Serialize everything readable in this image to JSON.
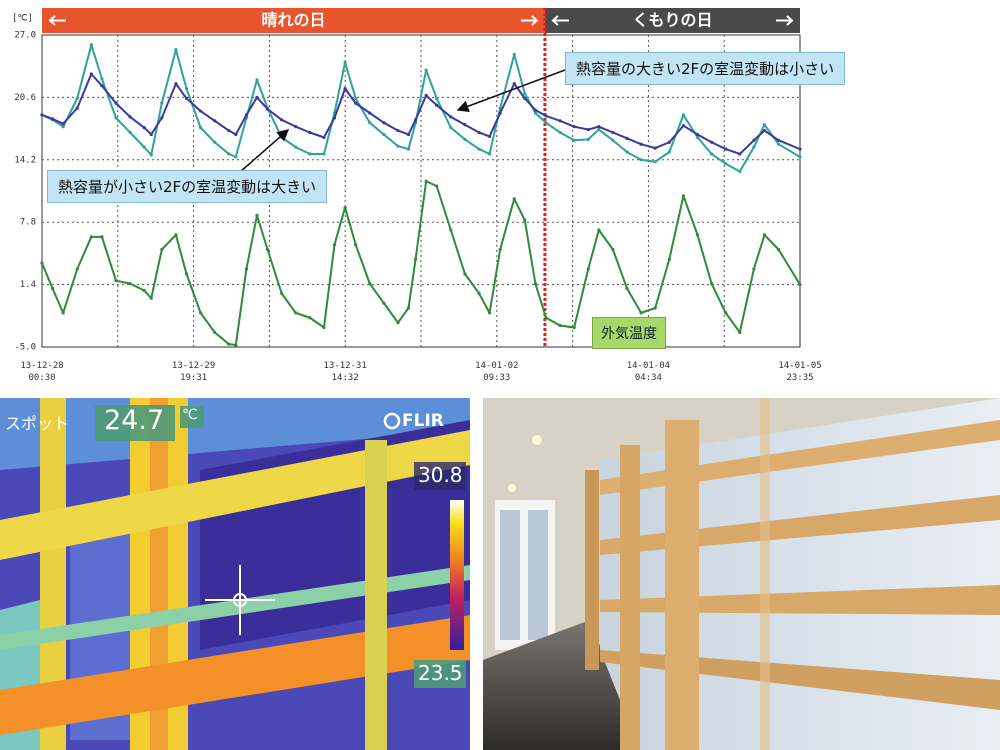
{
  "chart_data": {
    "type": "line",
    "y_unit": "[℃]",
    "regions": [
      {
        "label": "晴れの日",
        "from": 0,
        "to": 142.7,
        "color": "#e8542b"
      },
      {
        "label": "くもりの日",
        "from": 142.7,
        "to": 215.08,
        "color": "#4a4a4a"
      }
    ],
    "annotations": [
      "熱容量の大きい2Fの室温変動は小さい",
      "熱容量が小さい2Fの室温変動は大きい"
    ],
    "x": [
      0,
      3,
      6,
      10,
      14,
      17,
      21,
      25,
      29,
      31,
      34,
      38,
      41,
      45,
      49,
      53,
      55,
      58,
      61,
      64,
      68,
      72,
      76,
      80,
      83,
      86,
      89,
      93,
      97,
      101,
      104,
      106,
      109,
      112,
      116,
      120,
      124,
      127,
      130,
      134,
      137,
      140,
      143,
      147,
      151,
      155,
      158,
      162,
      166,
      170,
      174,
      178,
      182,
      186,
      190,
      194,
      198,
      202,
      205,
      209,
      215.08
    ],
    "xlim": [
      0,
      215.08
    ],
    "xticks": [
      {
        "value": 0,
        "label": "13-12-28\n00:30"
      },
      {
        "value": 43.02,
        "label": "13-12-29\n19:31"
      },
      {
        "value": 86.03,
        "label": "13-12-31\n14:32"
      },
      {
        "value": 129.05,
        "label": "14-01-02\n09:33"
      },
      {
        "value": 172.07,
        "label": "14-01-04\n04:34"
      },
      {
        "value": 215.08,
        "label": "14-01-05\n23:35"
      }
    ],
    "ylim": [
      -5,
      27
    ],
    "yticks": [
      {
        "value": 27,
        "label": "27.0"
      },
      20.6,
      14.2,
      7.8,
      1.4,
      {
        "value": -5,
        "label": "-5.0"
      }
    ],
    "grid": true,
    "series": [
      {
        "color": "#2fa398",
        "values": [
          18.8,
          18.3,
          17.6,
          20.5,
          26.0,
          22.5,
          18.5,
          17.0,
          15.5,
          14.7,
          20.0,
          25.5,
          21.5,
          17.5,
          16.0,
          14.8,
          14.5,
          18.5,
          22.4,
          19.5,
          16.5,
          15.5,
          14.8,
          14.8,
          19.0,
          24.2,
          20.5,
          18.0,
          16.8,
          15.6,
          15.3,
          18.0,
          23.4,
          20.5,
          17.5,
          16.3,
          15.3,
          14.8,
          19.5,
          25.0,
          21.0,
          19.0,
          18.0,
          17.0,
          16.2,
          16.3,
          17.3,
          16.2,
          15.0,
          14.2,
          14.0,
          15.0,
          18.8,
          16.5,
          14.8,
          13.8,
          13.0,
          15.5,
          17.8,
          15.8,
          14.5
        ]
      },
      {
        "color": "#3b3a9c",
        "values": [
          18.8,
          18.4,
          17.9,
          19.5,
          23.0,
          21.8,
          20.0,
          18.6,
          17.5,
          16.8,
          18.5,
          22.0,
          20.5,
          19.2,
          18.2,
          17.2,
          16.8,
          18.8,
          20.6,
          19.4,
          18.3,
          17.6,
          17.0,
          16.5,
          18.5,
          21.5,
          20.0,
          19.0,
          18.0,
          17.2,
          16.8,
          18.3,
          20.8,
          19.8,
          18.6,
          17.8,
          17.0,
          16.6,
          19.0,
          22.0,
          20.5,
          19.3,
          18.7,
          18.2,
          17.6,
          17.3,
          17.6,
          17.0,
          16.4,
          15.8,
          15.4,
          16.0,
          17.7,
          16.8,
          16.0,
          15.3,
          14.8,
          16.2,
          17.2,
          16.2,
          15.3
        ]
      },
      {
        "name": "外気温度",
        "color": "#2e8b3a",
        "values": [
          3.6,
          1.0,
          -1.5,
          3.0,
          6.3,
          6.3,
          1.8,
          1.5,
          0.8,
          0.0,
          5.0,
          6.5,
          2.5,
          -1.5,
          -3.5,
          -4.7,
          -4.8,
          3.0,
          8.5,
          5.0,
          0.5,
          -1.5,
          -2.0,
          -3.0,
          5.5,
          9.3,
          5.5,
          1.5,
          -0.5,
          -2.5,
          -1.0,
          4.0,
          12.0,
          11.5,
          7.0,
          2.5,
          0.5,
          -1.5,
          5.0,
          10.2,
          8.0,
          1.5,
          -2.0,
          -2.8,
          -3.0,
          3.0,
          7.0,
          5.0,
          1.0,
          -1.5,
          -1.0,
          4.0,
          10.5,
          6.5,
          1.5,
          -1.5,
          -3.5,
          3.0,
          6.5,
          5.0,
          1.4
        ]
      }
    ]
  },
  "thermal_image": {
    "spot_label": "スポット",
    "spot_value": 24.7,
    "unit": "℃",
    "brand": "FLIR",
    "scale_max": 30.8,
    "scale_min": 23.5
  }
}
